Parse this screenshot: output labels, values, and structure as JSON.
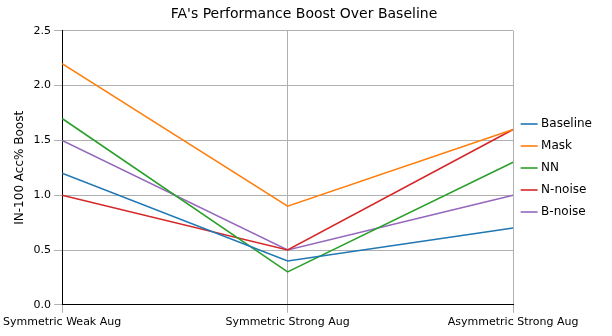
{
  "chart_data": {
    "type": "line",
    "title": "FA's Performance Boost Over Baseline",
    "y_label": "IN-100 Acc% Boost",
    "categories": [
      "Symmetric Weak Aug",
      "Symmetric Strong Aug",
      "Asymmetric Strong Aug"
    ],
    "series": [
      {
        "name": "Baseline",
        "color": "#1f77b4",
        "values": [
          1.2,
          0.4,
          0.7
        ]
      },
      {
        "name": "Mask",
        "color": "#ff7f0e",
        "values": [
          2.2,
          0.9,
          1.6
        ]
      },
      {
        "name": "NN",
        "color": "#2ca02c",
        "values": [
          1.7,
          0.3,
          1.3
        ]
      },
      {
        "name": "N-noise",
        "color": "#d62728",
        "values": [
          1.0,
          0.5,
          1.6
        ]
      },
      {
        "name": "B-noise",
        "color": "#9467bd",
        "values": [
          1.5,
          0.5,
          1.0
        ]
      }
    ],
    "ylim": [
      0,
      2.5
    ],
    "yticks": [
      {
        "value": 0,
        "label": "0.0"
      },
      0.5,
      {
        "value": 1,
        "label": "1.0"
      },
      1.5,
      {
        "value": 2,
        "label": "2.0"
      },
      2.5
    ],
    "grid": true,
    "legend": "right"
  }
}
